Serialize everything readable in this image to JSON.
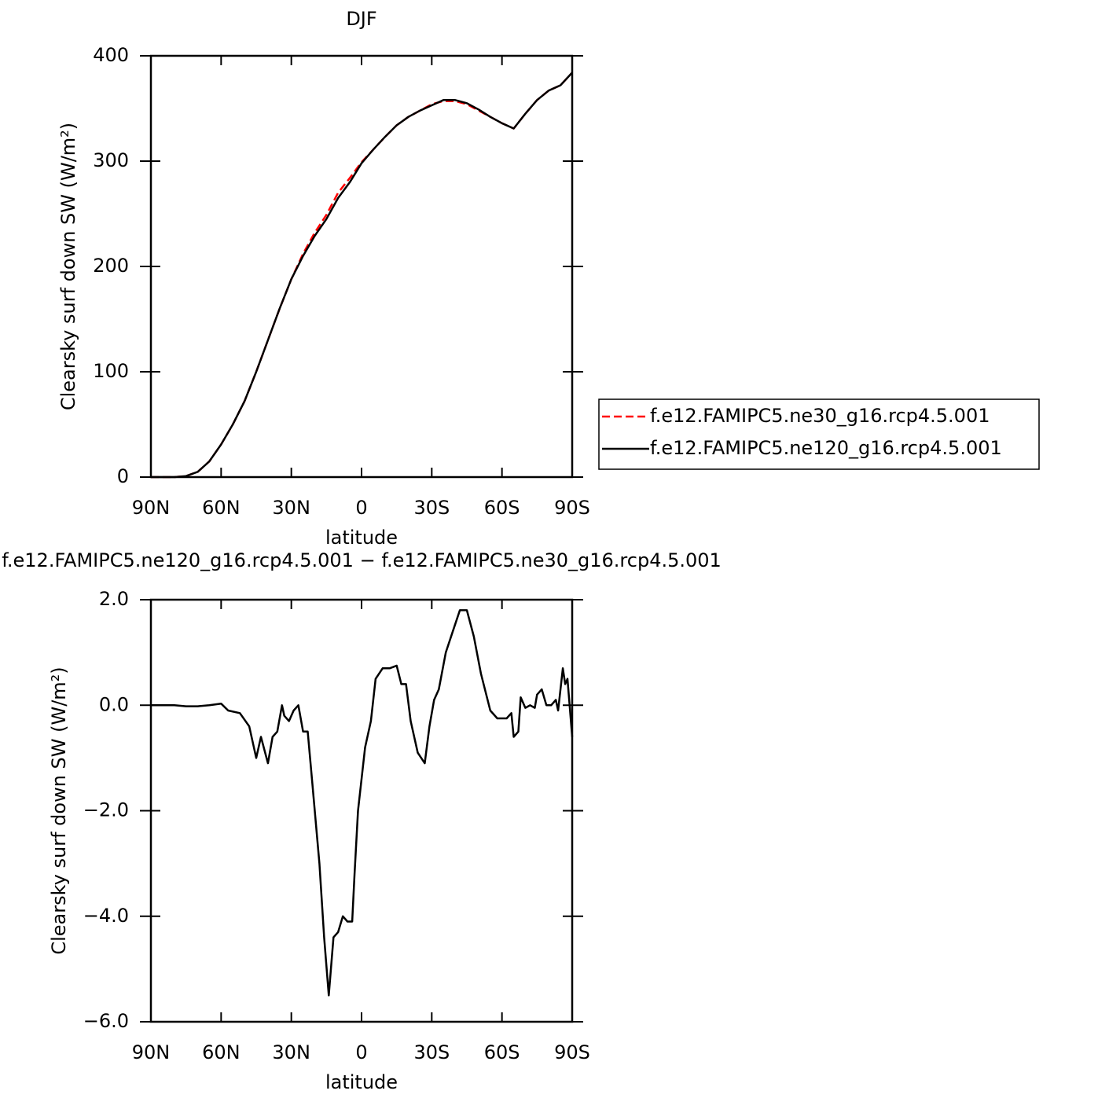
{
  "chart_data": [
    {
      "type": "line",
      "title": "DJF",
      "x_label": "latitude",
      "y_label": "Clearsky surf down SW (W/m²)",
      "x": [
        90,
        85,
        80,
        75,
        70,
        65,
        60,
        55,
        50,
        45,
        40,
        35,
        30,
        25,
        20,
        15,
        10,
        5,
        0,
        -5,
        -10,
        -15,
        -20,
        -25,
        -30,
        -35,
        -40,
        -45,
        -50,
        -55,
        -60,
        -65,
        -70,
        -75,
        -80,
        -85,
        -90
      ],
      "series": [
        {
          "name": "f.e12.FAMIPC5.ne30_g16.rcp4.5.001",
          "color": "#ff0000",
          "dash": true,
          "values": [
            0,
            0,
            0,
            1,
            5,
            15,
            31,
            50,
            72,
            100,
            130,
            160,
            188,
            212,
            232,
            249,
            270,
            284,
            299,
            311,
            323,
            334,
            342,
            348,
            354,
            357,
            357,
            354,
            348,
            342,
            336,
            331,
            345,
            358,
            367,
            372,
            384
          ]
        },
        {
          "name": "f.e12.FAMIPC5.ne120_g16.rcp4.5.001",
          "color": "#000000",
          "dash": false,
          "values": [
            0,
            0,
            0,
            1,
            5,
            15,
            31,
            50,
            72,
            100,
            130,
            160,
            188,
            210,
            229,
            245,
            265,
            280,
            298,
            311,
            323,
            334,
            342,
            348,
            353,
            358,
            358,
            355,
            349,
            342,
            336,
            331,
            345,
            358,
            367,
            372,
            384
          ]
        }
      ],
      "xlim": [
        90,
        -90
      ],
      "xticks": [
        {
          "value": 90,
          "label": "90N"
        },
        {
          "value": 60,
          "label": "60N"
        },
        {
          "value": 30,
          "label": "30N"
        },
        0,
        {
          "value": -30,
          "label": "30S"
        },
        {
          "value": -60,
          "label": "60S"
        },
        {
          "value": -90,
          "label": "90S"
        }
      ],
      "ylim": [
        0,
        400
      ],
      "yticks": [
        0,
        100,
        200,
        300,
        400
      ],
      "legend": "right"
    },
    {
      "type": "line",
      "title": "f.e12.FAMIPC5.ne120_g16.rcp4.5.001 − f.e12.FAMIPC5.ne30_g16.rcp4.5.001",
      "x_label": "latitude",
      "y_label": "Clearsky surf down SW (W/m²)",
      "color": "#000000",
      "x": [
        90,
        85,
        80,
        75,
        70,
        65,
        60,
        57,
        52,
        48,
        45,
        43,
        40,
        38,
        36,
        34,
        33,
        31,
        29,
        27,
        25,
        23,
        21,
        18,
        16,
        14,
        12,
        10,
        8,
        6,
        4,
        3,
        1.5,
        -1.5,
        -4,
        -6,
        -9,
        -12,
        -15,
        -17,
        -19,
        -21,
        -24,
        -27,
        -29,
        -31,
        -33,
        -36,
        -39,
        -42,
        -45,
        -48,
        -51,
        -55,
        -58,
        -62,
        -64,
        -65,
        -67,
        -68,
        -70,
        -72,
        -74,
        -75,
        -77,
        -79,
        -81,
        -83,
        -84,
        -86,
        -87,
        -88,
        -90
      ],
      "values": [
        0,
        0,
        0,
        -0.02,
        -0.02,
        0,
        0.03,
        -0.1,
        -0.15,
        -0.4,
        -1.0,
        -0.6,
        -1.1,
        -0.6,
        -0.5,
        0.0,
        -0.2,
        -0.3,
        -0.1,
        0.0,
        -0.5,
        -0.5,
        -1.5,
        -3.0,
        -4.4,
        -5.5,
        -4.4,
        -4.3,
        -4.0,
        -4.1,
        -4.1,
        -3.2,
        -2.0,
        -0.8,
        -0.3,
        0.5,
        0.7,
        0.7,
        0.75,
        0.4,
        0.4,
        -0.3,
        -0.9,
        -1.1,
        -0.4,
        0.1,
        0.3,
        1.0,
        1.4,
        1.8,
        1.8,
        1.3,
        0.6,
        -0.1,
        -0.25,
        -0.25,
        -0.15,
        -0.6,
        -0.5,
        0.15,
        -0.05,
        0.0,
        -0.05,
        0.2,
        0.3,
        0.0,
        0.0,
        0.1,
        -0.1,
        0.7,
        0.4,
        0.5,
        -0.6
      ],
      "xlim": [
        90,
        -90
      ],
      "xticks": [
        {
          "value": 90,
          "label": "90N"
        },
        {
          "value": 60,
          "label": "60N"
        },
        {
          "value": 30,
          "label": "30N"
        },
        0,
        {
          "value": -30,
          "label": "30S"
        },
        {
          "value": -60,
          "label": "60S"
        },
        {
          "value": -90,
          "label": "90S"
        }
      ],
      "ylim": [
        -6,
        2
      ],
      "yticks": [
        {
          "value": -6,
          "label": "−6.0"
        },
        {
          "value": -4,
          "label": "−4.0"
        },
        {
          "value": -2,
          "label": "−2.0"
        },
        {
          "value": 0,
          "label": "0.0"
        },
        {
          "value": 2,
          "label": "2.0"
        }
      ]
    }
  ]
}
